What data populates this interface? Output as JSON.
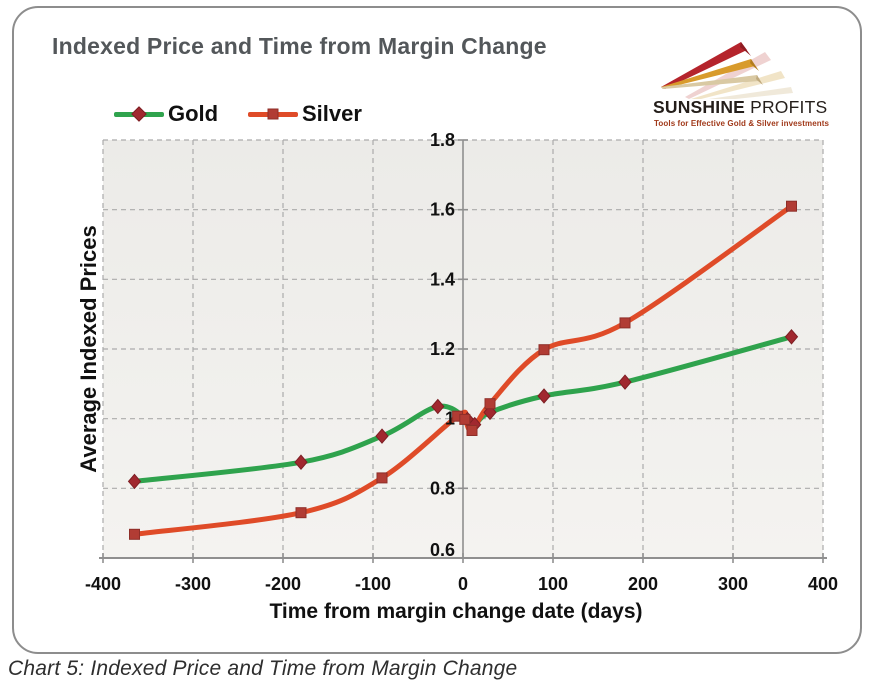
{
  "header": {
    "title": "Indexed Price and Time from Margin Change"
  },
  "logo": {
    "brand_bold": "SUNSHINE",
    "brand_light": " PROFITS",
    "tagline": "Tools for Effective Gold & Silver investments",
    "colors": {
      "wedge_red": "#b5242c",
      "wedge_gold": "#d89b2c",
      "wedge_tan": "#d9c9a3",
      "tagline": "#a13a1b",
      "brand_text": "#241e1a"
    }
  },
  "caption": "Chart 5: Indexed Price and Time from Margin Change",
  "chart_data": {
    "type": "line",
    "title": "Indexed Price and Time from Margin Change",
    "xlabel": "Time from margin change date (days)",
    "ylabel": "Average Indexed Prices",
    "xlim": [
      -400,
      400
    ],
    "ylim": [
      0.6,
      1.8
    ],
    "grid": "dashed",
    "legend_position": "top-left",
    "grid_color": "#ababab",
    "axis_color": "#8f8f8f",
    "tick_label_color": "#111111",
    "plot_bg_top": "#ecebe8",
    "plot_bg_bottom": "#f4f3f0",
    "x_tick_values": [
      -400,
      -300,
      -200,
      -100,
      0,
      100,
      200,
      300,
      400
    ],
    "x_tick_labels": [
      "-400",
      "-300",
      "-200",
      "-100",
      "0",
      "100",
      "200",
      "300",
      "400"
    ],
    "y_tick_values": [
      0.6,
      0.8,
      1,
      1.2,
      1.4,
      1.6,
      1.8
    ],
    "y_tick_labels": [
      "0.6",
      "0.8",
      "1",
      "1.2",
      "1.4",
      "1.6",
      "1.8"
    ],
    "series": [
      {
        "name": "Gold",
        "color": "#2fa34d",
        "marker": "diamond",
        "marker_color": "#a1282f",
        "marker_edge": "#7d1f24",
        "points": [
          [
            -365,
            0.82
          ],
          [
            -180,
            0.875
          ],
          [
            -90,
            0.95
          ],
          [
            -28,
            1.035
          ],
          [
            5,
            0.998
          ],
          [
            13,
            0.983
          ],
          [
            30,
            1.018
          ],
          [
            90,
            1.065
          ],
          [
            180,
            1.105
          ],
          [
            365,
            1.235
          ]
        ]
      },
      {
        "name": "Silver",
        "color": "#df4b28",
        "marker": "square",
        "marker_color": "#b13c34",
        "marker_edge": "#8e2e28",
        "points": [
          [
            -365,
            0.668
          ],
          [
            -180,
            0.73
          ],
          [
            -90,
            0.83
          ],
          [
            -6,
            1.007
          ],
          [
            2,
            0.998
          ],
          [
            10,
            0.966
          ],
          [
            30,
            1.043
          ],
          [
            90,
            1.198
          ],
          [
            180,
            1.275
          ],
          [
            365,
            1.61
          ]
        ]
      }
    ]
  }
}
